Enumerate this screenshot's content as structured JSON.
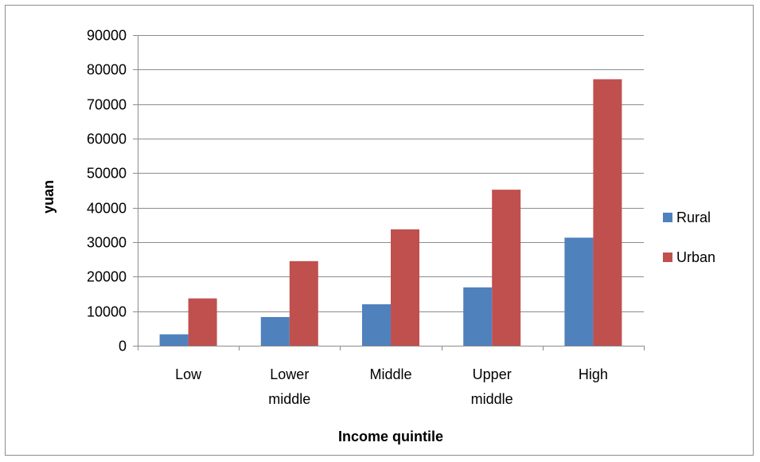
{
  "chart_data": {
    "type": "bar",
    "title": "",
    "xlabel": "Income quintile",
    "ylabel": "yuan",
    "ylim": [
      0,
      90000
    ],
    "yticks": [
      0,
      10000,
      20000,
      30000,
      40000,
      50000,
      60000,
      70000,
      80000,
      90000
    ],
    "grid": true,
    "legend_position": "right",
    "categories": [
      [
        "Low"
      ],
      [
        "Lower",
        "middle"
      ],
      [
        "Middle"
      ],
      [
        "Upper",
        "middle"
      ],
      [
        "High"
      ]
    ],
    "series": [
      {
        "name": "Rural",
        "color": "#4f81bd",
        "values": [
          3300,
          8300,
          12000,
          16900,
          31300
        ]
      },
      {
        "name": "Urban",
        "color": "#c0504d",
        "values": [
          13700,
          24500,
          33700,
          45200,
          77200
        ]
      }
    ]
  }
}
